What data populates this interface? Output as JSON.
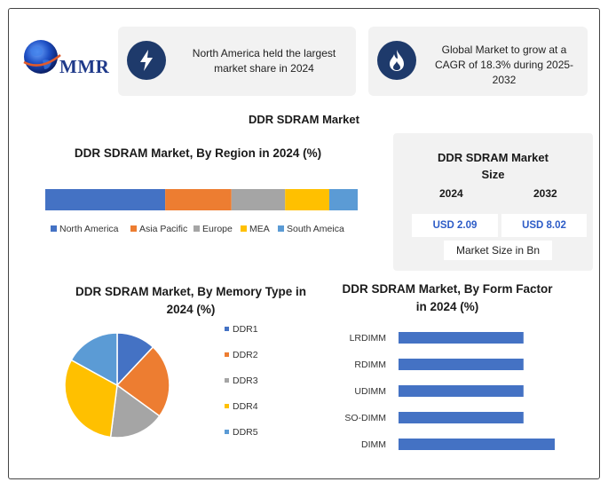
{
  "logo": {
    "text": "MMR"
  },
  "highlights": [
    {
      "icon": "lightning-icon",
      "text": "North America held the largest market share in 2024"
    },
    {
      "icon": "flame-icon",
      "text": "Global Market to grow at a CAGR of 18.3% during 2025-2032"
    }
  ],
  "main_title": "DDR SDRAM Market",
  "market_size": {
    "title": "DDR SDRAM Market Size",
    "year_start": "2024",
    "year_end": "2032",
    "value_start": "USD 2.09",
    "value_end": "USD 8.02",
    "unit": "Market Size in Bn"
  },
  "colors": {
    "blue": "#4472c4",
    "orange": "#ed7d31",
    "gray": "#a5a5a5",
    "yellow": "#ffc000",
    "lightblue": "#5b9bd5",
    "navy": "#1e3a6b"
  },
  "chart_data": [
    {
      "type": "bar",
      "orientation": "horizontal-stacked",
      "title": "DDR SDRAM Market, By Region in 2024 (%)",
      "series": [
        {
          "name": "North America",
          "value": 38,
          "color": "#4472c4"
        },
        {
          "name": "Asia Pacific",
          "value": 21,
          "color": "#ed7d31"
        },
        {
          "name": "Europe",
          "value": 17,
          "color": "#a5a5a5"
        },
        {
          "name": "MEA",
          "value": 14,
          "color": "#ffc000"
        },
        {
          "name": "South Ameica",
          "value": 9,
          "color": "#5b9bd5"
        }
      ],
      "legend": "bottom"
    },
    {
      "type": "pie",
      "title": "DDR SDRAM Market, By Memory Type in 2024 (%)",
      "categories": [
        "DDR1",
        "DDR2",
        "DDR3",
        "DDR4",
        "DDR5"
      ],
      "values": [
        12,
        23,
        17,
        31,
        17
      ],
      "colors": [
        "#4472c4",
        "#ed7d31",
        "#a5a5a5",
        "#ffc000",
        "#5b9bd5"
      ],
      "legend": "right"
    },
    {
      "type": "bar",
      "orientation": "horizontal",
      "title": "DDR SDRAM Market, By Form Factor in 2024 (%)",
      "categories": [
        "LRDIMM",
        "RDIMM",
        "UDIMM",
        "SO-DIMM",
        "DIMM"
      ],
      "values": [
        20,
        20,
        20,
        20,
        25
      ],
      "color": "#4472c4"
    }
  ]
}
